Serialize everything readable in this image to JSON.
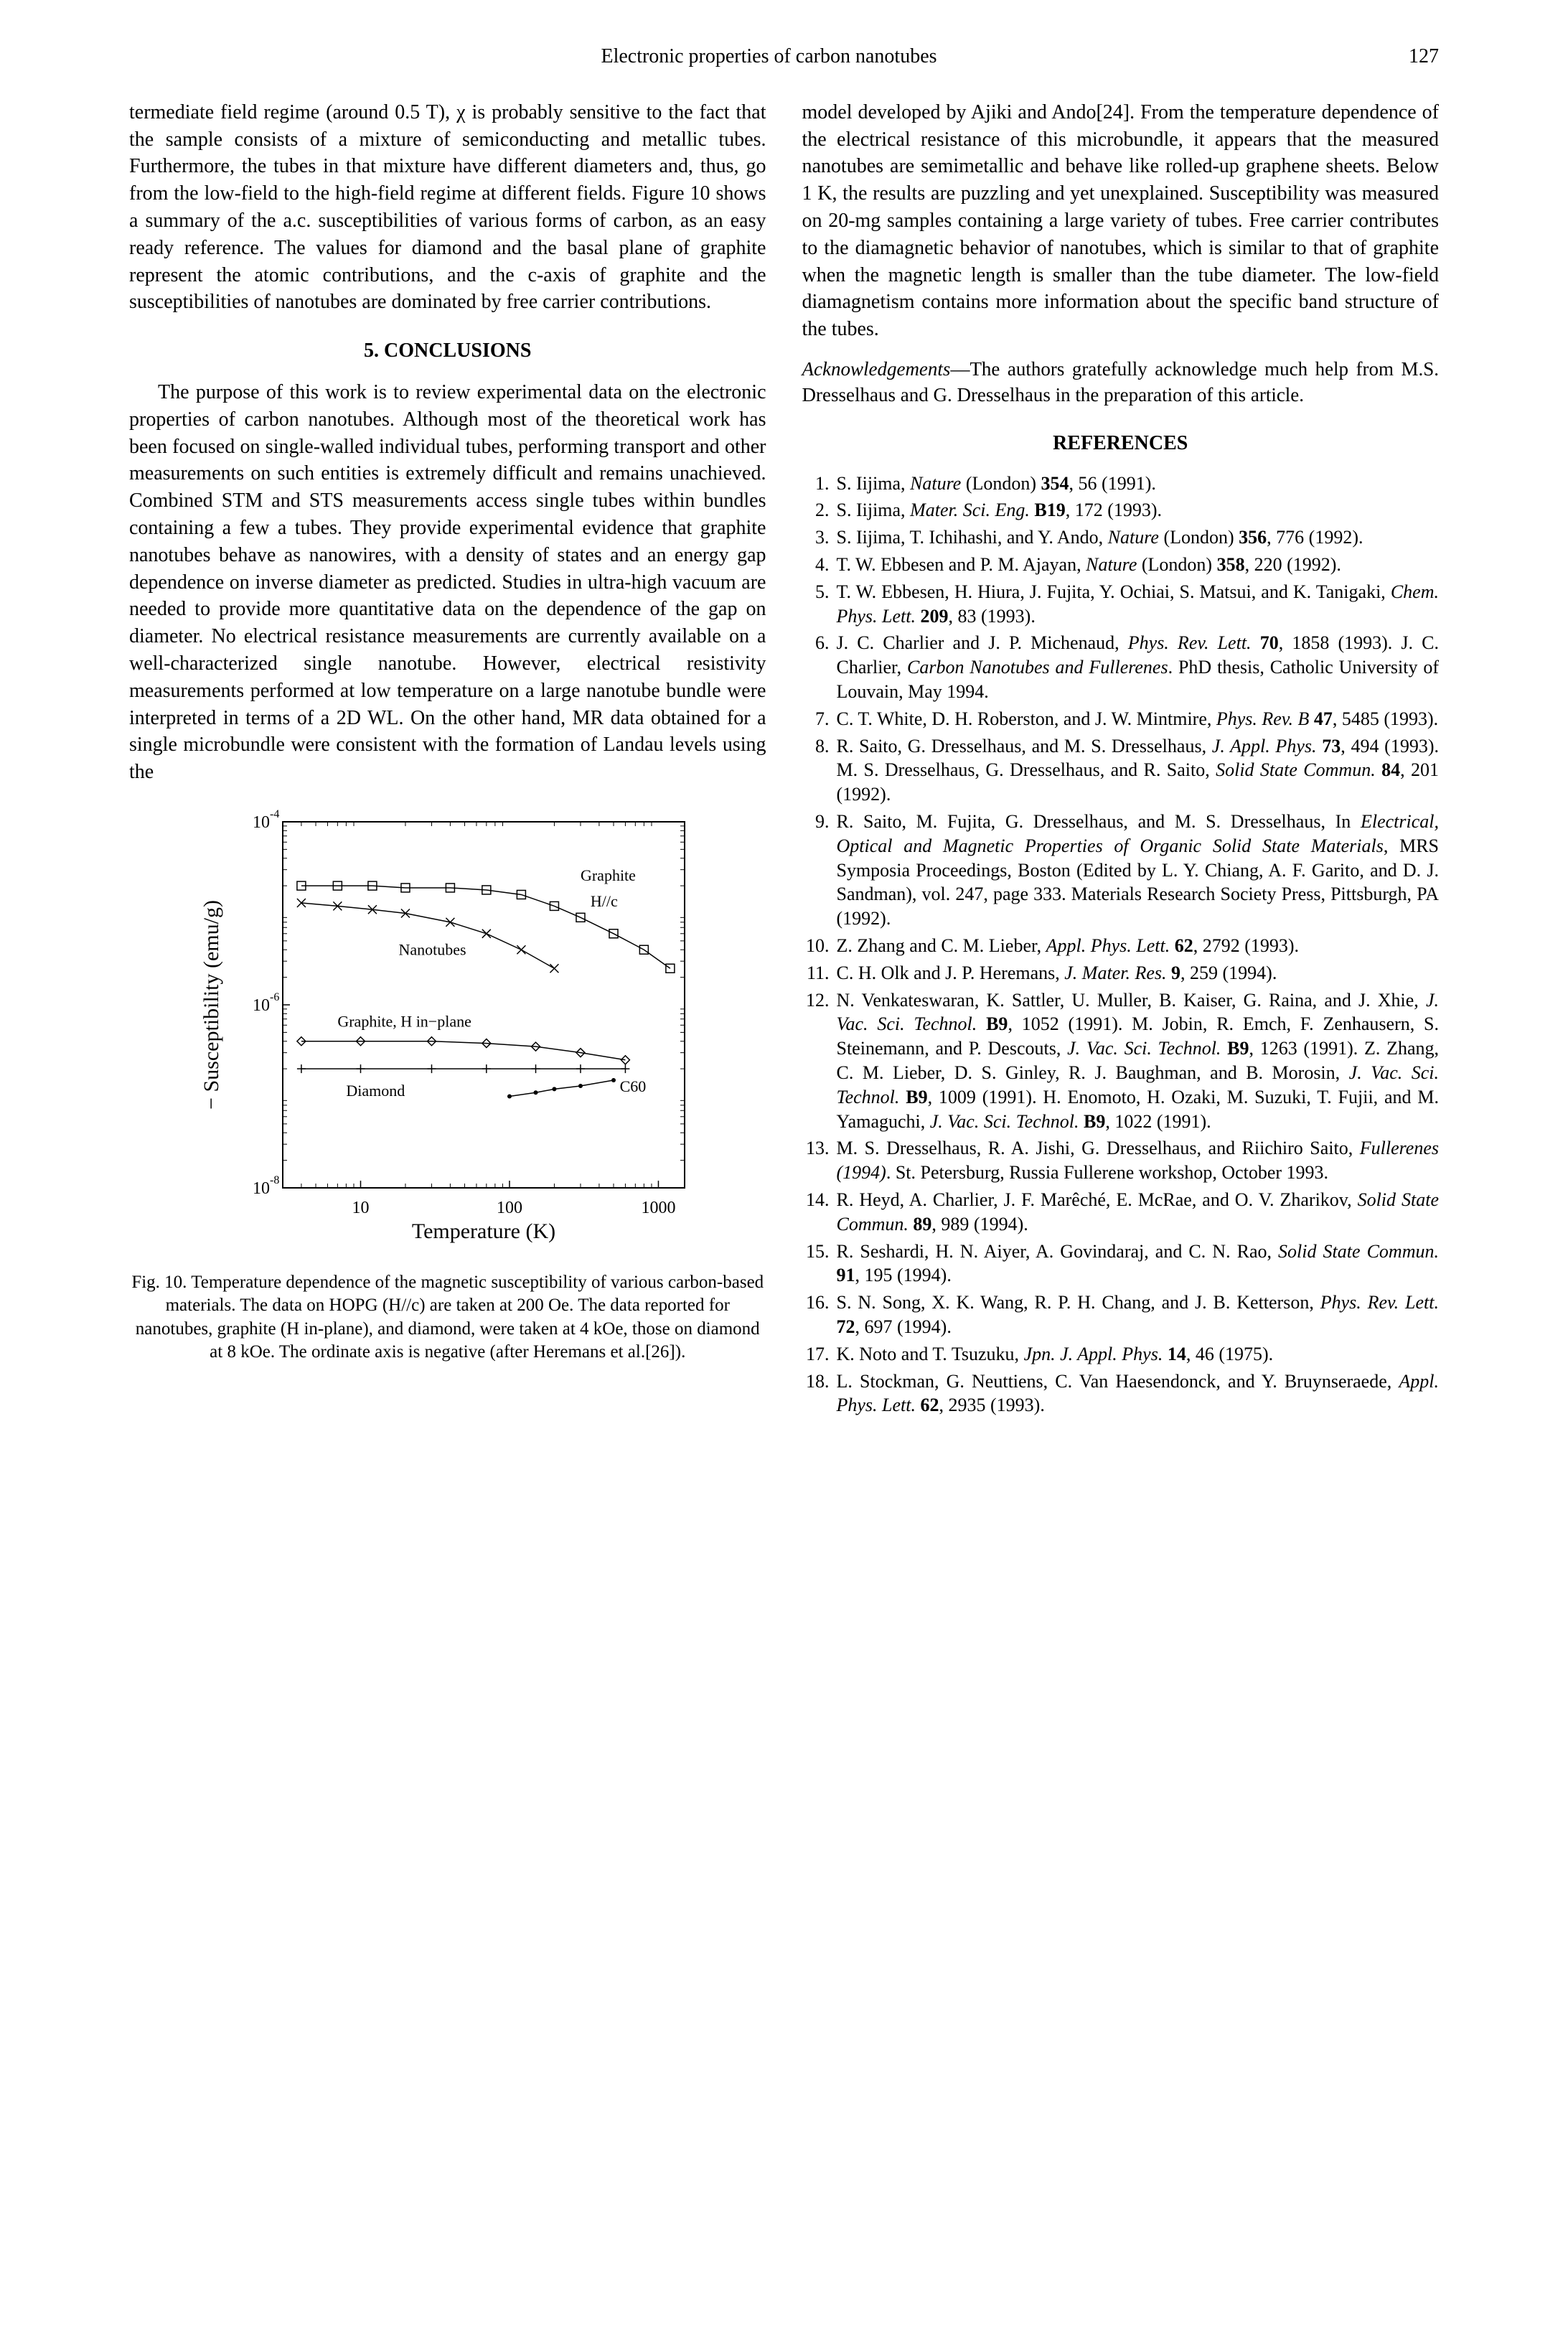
{
  "header": {
    "running_title": "Electronic properties of carbon nanotubes",
    "page_number": "127"
  },
  "left_column": {
    "continuation_para": "termediate field regime (around 0.5 T), χ is probably sensitive to the fact that the sample consists of a mixture of semiconducting and metallic tubes. Furthermore, the tubes in that mixture have different diameters and, thus, go from the low-field to the high-field regime at different fields. Figure 10 shows a summary of the a.c. susceptibilities of various forms of carbon, as an easy ready reference. The values for diamond and the basal plane of graphite represent the atomic contributions, and the c-axis of graphite and the susceptibilities of nanotubes are dominated by free carrier contributions.",
    "section5_heading": "5. CONCLUSIONS",
    "conclusions_para": "The purpose of this work is to review experimental data on the electronic properties of carbon nanotubes. Although most of the theoretical work has been focused on single-walled individual tubes, performing transport and other measurements on such entities is extremely difficult and remains unachieved. Combined STM and STS measurements access single tubes within bundles containing a few a tubes. They provide experimental evidence that graphite nanotubes behave as nanowires, with a density of states and an energy gap dependence on inverse diameter as predicted. Studies in ultra-high vacuum are needed to provide more quantitative data on the dependence of the gap on diameter. No electrical resistance measurements are currently available on a well-characterized single nanotube. However, electrical resistivity measurements performed at low temperature on a large nanotube bundle were interpreted in terms of a 2D WL. On the other hand, MR data obtained for a single microbundle were consistent with the formation of Landau levels using the",
    "figure": {
      "caption": "Fig. 10. Temperature dependence of the magnetic susceptibility of various carbon-based materials. The data on HOPG (H//c) are taken at 200 Oe. The data reported for nanotubes, graphite (H in-plane), and diamond, were taken at 4 kOe, those on diamond at 8 kOe. The ordinate axis is negative (after Heremans et al.[26]).",
      "chart": {
        "type": "scatter-line",
        "x_axis": {
          "label": "Temperature (K)",
          "scale": "log",
          "min": 3,
          "max": 1500,
          "ticks": [
            10,
            100,
            1000
          ]
        },
        "y_axis": {
          "label": "− Susceptibility (emu/g)",
          "scale": "log",
          "exp_ticks": [
            -8,
            -6,
            -4
          ]
        },
        "background_color": "#ffffff",
        "axis_color": "#000000",
        "font_size_axis": 24,
        "font_size_label": 26,
        "series": [
          {
            "name": "Graphite H//c",
            "label": "Graphite H//c",
            "marker": "square-open",
            "color": "#000000",
            "points": [
              [
                4,
                2e-05
              ],
              [
                7,
                2e-05
              ],
              [
                12,
                2e-05
              ],
              [
                20,
                1.9e-05
              ],
              [
                40,
                1.9e-05
              ],
              [
                70,
                1.8e-05
              ],
              [
                120,
                1.6e-05
              ],
              [
                200,
                1.2e-05
              ],
              [
                300,
                9e-06
              ],
              [
                500,
                6e-06
              ],
              [
                800,
                4e-06
              ],
              [
                1200,
                2.5e-06
              ]
            ]
          },
          {
            "name": "Nanotubes",
            "label": "Nanotubes",
            "marker": "x",
            "color": "#000000",
            "points": [
              [
                4,
                1.3e-05
              ],
              [
                7,
                1.2e-05
              ],
              [
                12,
                1.1e-05
              ],
              [
                20,
                1e-05
              ],
              [
                40,
                8e-06
              ],
              [
                70,
                6e-06
              ],
              [
                120,
                4e-06
              ],
              [
                200,
                2.5e-06
              ]
            ]
          },
          {
            "name": "Graphite H in-plane",
            "label": "Graphite, H in−plane",
            "marker": "diamond-open",
            "color": "#000000",
            "points": [
              [
                4,
                4e-07
              ],
              [
                10,
                4e-07
              ],
              [
                30,
                4e-07
              ],
              [
                70,
                3.8e-07
              ],
              [
                150,
                3.5e-07
              ],
              [
                300,
                3e-07
              ],
              [
                600,
                2.5e-07
              ]
            ]
          },
          {
            "name": "Diamond",
            "label": "Diamond",
            "marker": "plus",
            "color": "#000000",
            "points": [
              [
                4,
                2e-07
              ],
              [
                10,
                2e-07
              ],
              [
                30,
                2e-07
              ],
              [
                70,
                2e-07
              ],
              [
                150,
                2e-07
              ],
              [
                300,
                2e-07
              ],
              [
                600,
                2e-07
              ]
            ]
          },
          {
            "name": "C60",
            "label": "C60",
            "marker": "dot",
            "color": "#000000",
            "points": [
              [
                100,
                1e-07
              ],
              [
                150,
                1.1e-07
              ],
              [
                200,
                1.2e-07
              ],
              [
                300,
                1.3e-07
              ],
              [
                500,
                1.5e-07
              ]
            ]
          }
        ]
      }
    }
  },
  "right_column": {
    "continuation_para": "model developed by Ajiki and Ando[24]. From the temperature dependence of the electrical resistance of this microbundle, it appears that the measured nanotubes are semimetallic and behave like rolled-up graphene sheets. Below 1 K, the results are puzzling and yet unexplained. Susceptibility was measured on 20-mg samples containing a large variety of tubes. Free carrier contributes to the diamagnetic behavior of nanotubes, which is similar to that of graphite when the magnetic length is smaller than the tube diameter. The low-field diamagnetism contains more information about the specific band structure of the tubes.",
    "acknowledgements_label": "Acknowledgements",
    "acknowledgements_text": "—The authors gratefully acknowledge much help from M.S. Dresselhaus and G. Dresselhaus in the preparation of this article.",
    "references_heading": "REFERENCES",
    "references": [
      {
        "n": "1.",
        "t": "S. Iijima, <em class='j'>Nature</em> (London) <b>354</b>, 56 (1991)."
      },
      {
        "n": "2.",
        "t": "S. Iijima, <em class='j'>Mater. Sci. Eng.</em> <b>B19</b>, 172 (1993)."
      },
      {
        "n": "3.",
        "t": "S. Iijima, T. Ichihashi, and Y. Ando, <em class='j'>Nature</em> (London) <b>356</b>, 776 (1992)."
      },
      {
        "n": "4.",
        "t": "T. W. Ebbesen and P. M. Ajayan, <em class='j'>Nature</em> (London) <b>358</b>, 220 (1992)."
      },
      {
        "n": "5.",
        "t": "T. W. Ebbesen, H. Hiura, J. Fujita, Y. Ochiai, S. Matsui, and K. Tanigaki, <em class='j'>Chem. Phys. Lett.</em> <b>209</b>, 83 (1993)."
      },
      {
        "n": "6.",
        "t": "J. C. Charlier and J. P. Michenaud, <em class='j'>Phys. Rev. Lett.</em> <b>70</b>, 1858 (1993). J. C. Charlier, <em class='j'>Carbon Nanotubes and Fullerenes</em>. PhD thesis, Catholic University of Louvain, May 1994."
      },
      {
        "n": "7.",
        "t": "C. T. White, D. H. Roberston, and J. W. Mintmire, <em class='j'>Phys. Rev. B</em> <b>47</b>, 5485 (1993)."
      },
      {
        "n": "8.",
        "t": "R. Saito, G. Dresselhaus, and M. S. Dresselhaus, <em class='j'>J. Appl. Phys.</em> <b>73</b>, 494 (1993). M. S. Dresselhaus, G. Dresselhaus, and R. Saito, <em class='j'>Solid State Commun.</em> <b>84</b>, 201 (1992)."
      },
      {
        "n": "9.",
        "t": "R. Saito, M. Fujita, G. Dresselhaus, and M. S. Dresselhaus, In <em class='j'>Electrical, Optical and Magnetic Properties of Organic Solid State Materials</em>, MRS Symposia Proceedings, Boston (Edited by L. Y. Chiang, A. F. Garito, and D. J. Sandman), vol. 247, page 333. Materials Research Society Press, Pittsburgh, PA (1992)."
      },
      {
        "n": "10.",
        "t": "Z. Zhang and C. M. Lieber, <em class='j'>Appl. Phys. Lett.</em> <b>62</b>, 2792 (1993)."
      },
      {
        "n": "11.",
        "t": "C. H. Olk and J. P. Heremans, <em class='j'>J. Mater. Res.</em> <b>9</b>, 259 (1994)."
      },
      {
        "n": "12.",
        "t": "N. Venkateswaran, K. Sattler, U. Muller, B. Kaiser, G. Raina, and J. Xhie, <em class='j'>J. Vac. Sci. Technol.</em> <b>B9</b>, 1052 (1991). M. Jobin, R. Emch, F. Zenhausern, S. Steinemann, and P. Descouts, <em class='j'>J. Vac. Sci. Technol.</em> <b>B9</b>, 1263 (1991). Z. Zhang, C. M. Lieber, D. S. Ginley, R. J. Baughman, and B. Morosin, <em class='j'>J. Vac. Sci. Technol.</em> <b>B9</b>, 1009 (1991). H. Enomoto, H. Ozaki, M. Suzuki, T. Fujii, and M. Yamaguchi, <em class='j'>J. Vac. Sci. Technol.</em> <b>B9</b>, 1022 (1991)."
      },
      {
        "n": "13.",
        "t": "M. S. Dresselhaus, R. A. Jishi, G. Dresselhaus, and Riichiro Saito, <em class='j'>Fullerenes (1994)</em>. St. Petersburg, Russia Fullerene workshop, October 1993."
      },
      {
        "n": "14.",
        "t": "R. Heyd, A. Charlier, J. F. Marêché, E. McRae, and O. V. Zharikov, <em class='j'>Solid State Commun.</em> <b>89</b>, 989 (1994)."
      },
      {
        "n": "15.",
        "t": "R. Seshardi, H. N. Aiyer, A. Govindaraj, and C. N. Rao, <em class='j'>Solid State Commun.</em> <b>91</b>, 195 (1994)."
      },
      {
        "n": "16.",
        "t": "S. N. Song, X. K. Wang, R. P. H. Chang, and J. B. Ketterson, <em class='j'>Phys. Rev. Lett.</em> <b>72</b>, 697 (1994)."
      },
      {
        "n": "17.",
        "t": "K. Noto and T. Tsuzuku, <em class='j'>Jpn. J. Appl. Phys.</em> <b>14</b>, 46 (1975)."
      },
      {
        "n": "18.",
        "t": "L. Stockman, G. Neuttiens, C. Van Haesendonck, and Y. Bruynseraede, <em class='j'>Appl. Phys. Lett.</em> <b>62</b>, 2935 (1993)."
      }
    ]
  }
}
